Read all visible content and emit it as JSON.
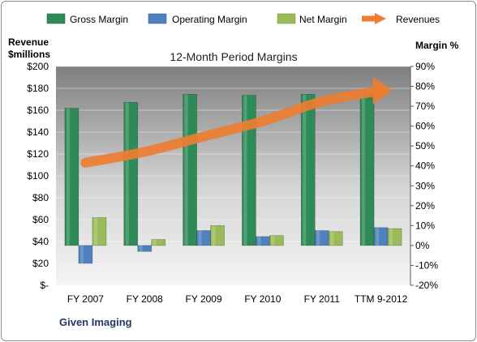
{
  "chart_data": {
    "type": "bar",
    "title": "12-Month Period Margins",
    "footer": "Given Imaging",
    "categories": [
      "FY 2007",
      "FY 2008",
      "FY 2009",
      "FY 2010",
      "FY 2011",
      "TTM 9-2012"
    ],
    "left_axis": {
      "label_line1": "Revenue",
      "label_line2": "$millions",
      "ylim": [
        0,
        200
      ],
      "ticks": [
        0,
        20,
        40,
        60,
        80,
        100,
        120,
        140,
        160,
        180,
        200
      ],
      "tick_labels": [
        "$-",
        "$20",
        "$40",
        "$60",
        "$80",
        "$100",
        "$120",
        "$140",
        "$160",
        "$180",
        "$200"
      ]
    },
    "right_axis": {
      "label": "Margin %",
      "ylim": [
        -20,
        90
      ],
      "ticks": [
        -20,
        -10,
        0,
        10,
        20,
        30,
        40,
        50,
        60,
        70,
        80,
        90
      ],
      "tick_labels": [
        "-20%",
        "-10%",
        "0%",
        "10%",
        "20%",
        "30%",
        "40%",
        "50%",
        "60%",
        "70%",
        "80%",
        "90%"
      ]
    },
    "series": [
      {
        "name": "Gross Margin",
        "axis": "right",
        "color": "#2e8b57",
        "values": [
          69,
          72,
          76,
          75.5,
          76,
          76
        ]
      },
      {
        "name": "Operating Margin",
        "axis": "right",
        "color": "#4f81bd",
        "values": [
          -9,
          -3,
          7.5,
          4.5,
          7.5,
          9
        ]
      },
      {
        "name": "Net Margin",
        "axis": "right",
        "color": "#9bbb59",
        "values": [
          14,
          3,
          10,
          5,
          7,
          8.5
        ]
      },
      {
        "name": "Revenues",
        "axis": "left",
        "type": "line",
        "color": "#ed7d31",
        "values": [
          112,
          122,
          136,
          150,
          168,
          178
        ]
      }
    ],
    "grid": true,
    "legend_position": "top"
  }
}
